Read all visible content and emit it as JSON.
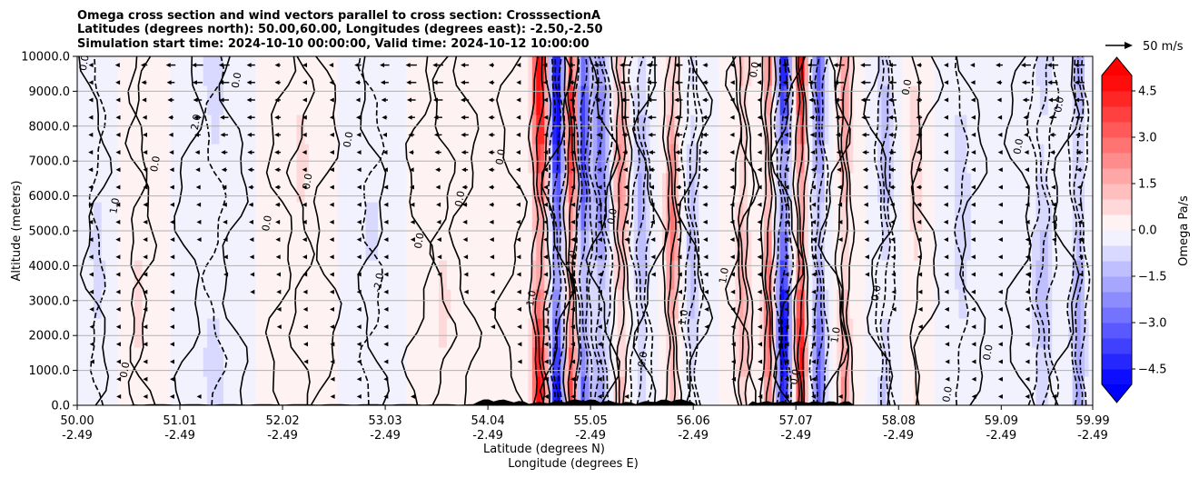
{
  "chart_data": {
    "type": "heatmap",
    "title_lines": [
      "Omega cross section and wind vectors parallel to cross section: CrosssectionA",
      "Latitudes (degrees north): 50.00,60.00, Longitudes (degrees east): -2.50,-2.50",
      "Simulation start time: 2024-10-10 00:00:00, Valid time: 2024-10-12 10:00:00"
    ],
    "ylabel": "Altitude (meters)",
    "xlabel_lat": "Latitude (degrees N)",
    "xlabel_lon": "Longitude (degrees E)",
    "ylim": [
      0,
      10000
    ],
    "xlim": [
      50.0,
      59.99
    ],
    "y_ticks": [
      "0.0",
      "1000.0",
      "2000.0",
      "3000.0",
      "4000.0",
      "5000.0",
      "6000.0",
      "7000.0",
      "8000.0",
      "9000.0",
      "10000.0"
    ],
    "y_tick_values": [
      0,
      1000,
      2000,
      3000,
      4000,
      5000,
      6000,
      7000,
      8000,
      9000,
      10000
    ],
    "x_ticks": [
      {
        "lat": "50.00",
        "lon": "-2.49",
        "v": 50.0
      },
      {
        "lat": "51.01",
        "lon": "-2.49",
        "v": 51.01
      },
      {
        "lat": "52.02",
        "lon": "-2.49",
        "v": 52.02
      },
      {
        "lat": "53.03",
        "lon": "-2.49",
        "v": 53.03
      },
      {
        "lat": "54.04",
        "lon": "-2.49",
        "v": 54.04
      },
      {
        "lat": "55.05",
        "lon": "-2.49",
        "v": 55.05
      },
      {
        "lat": "56.06",
        "lon": "-2.49",
        "v": 56.06
      },
      {
        "lat": "57.07",
        "lon": "-2.49",
        "v": 57.07
      },
      {
        "lat": "58.08",
        "lon": "-2.49",
        "v": 58.08
      },
      {
        "lat": "59.09",
        "lon": "-2.49",
        "v": 59.09
      },
      {
        "lat": "59.99",
        "lon": "-2.49",
        "v": 59.99
      }
    ],
    "grid": "horizontal",
    "colorbar": {
      "label": "Omega Pa/s",
      "range": [
        -5.0,
        5.0
      ],
      "ticks": [
        "4.5",
        "3.0",
        "1.5",
        "0.0",
        "−1.5",
        "−3.0",
        "−4.5"
      ],
      "tick_values": [
        4.5,
        3.0,
        1.5,
        0.0,
        -1.5,
        -3.0,
        -4.5
      ],
      "extend": "both",
      "levels": 20,
      "colormap": "bwr"
    },
    "quiver_key": {
      "label": "50 m/s"
    },
    "features": [
      {
        "lat": 54.55,
        "peak": 4.5,
        "width": 0.07
      },
      {
        "lat": 54.72,
        "peak": -4.8,
        "width": 0.06
      },
      {
        "lat": 54.86,
        "peak": 4.0,
        "width": 0.05
      },
      {
        "lat": 54.98,
        "peak": -3.5,
        "width": 0.06
      },
      {
        "lat": 55.15,
        "peak": -2.5,
        "width": 0.08
      },
      {
        "lat": 55.35,
        "peak": 2.0,
        "width": 0.07
      },
      {
        "lat": 55.55,
        "peak": -1.5,
        "width": 0.08
      },
      {
        "lat": 55.85,
        "peak": 2.5,
        "width": 0.06
      },
      {
        "lat": 56.05,
        "peak": -1.2,
        "width": 0.07
      },
      {
        "lat": 56.55,
        "peak": 1.5,
        "width": 0.07
      },
      {
        "lat": 56.8,
        "peak": 3.0,
        "width": 0.05
      },
      {
        "lat": 56.95,
        "peak": -4.8,
        "width": 0.06
      },
      {
        "lat": 57.12,
        "peak": 4.5,
        "width": 0.05
      },
      {
        "lat": 57.3,
        "peak": -3.0,
        "width": 0.06
      },
      {
        "lat": 57.55,
        "peak": 2.0,
        "width": 0.06
      },
      {
        "lat": 57.95,
        "peak": -1.2,
        "width": 0.07
      },
      {
        "lat": 58.25,
        "peak": 0.8,
        "width": 0.08
      },
      {
        "lat": 58.7,
        "peak": -0.9,
        "width": 0.1
      },
      {
        "lat": 59.5,
        "peak": -1.2,
        "width": 0.1
      },
      {
        "lat": 59.85,
        "peak": -1.8,
        "width": 0.07
      },
      {
        "lat": 50.2,
        "peak": -0.6,
        "width": 0.12
      },
      {
        "lat": 50.6,
        "peak": 0.5,
        "width": 0.15
      },
      {
        "lat": 51.35,
        "peak": -0.6,
        "width": 0.18
      },
      {
        "lat": 52.2,
        "peak": 0.5,
        "width": 0.2
      },
      {
        "lat": 52.9,
        "peak": -0.5,
        "width": 0.2
      },
      {
        "lat": 53.6,
        "peak": 0.5,
        "width": 0.2
      }
    ],
    "contour_labels": [
      "0.0",
      "0.0",
      "0.0",
      "0.0",
      "0.0",
      "0.0",
      "0.0",
      "1.0",
      "0.0",
      "0.0",
      "1.0",
      "2.0",
      "1.0",
      "0.0",
      "0.0",
      "1.0",
      "0.0",
      "0.0",
      "0.0",
      "0.0",
      "-1.0",
      "0.0",
      "0.0",
      "0.0",
      "0.0",
      "-2.0",
      "0.0",
      "1.0"
    ]
  }
}
